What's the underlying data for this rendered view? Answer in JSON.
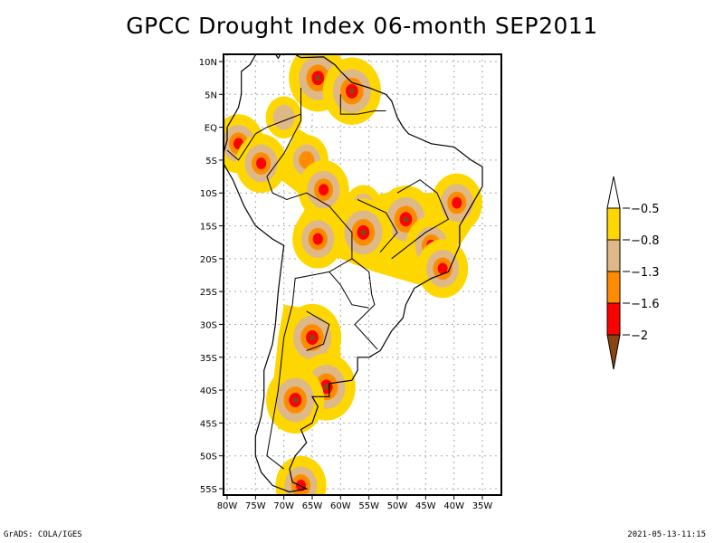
{
  "title": "GPCC Drought Index 06-month SEP2011",
  "footer": {
    "left": "GrADS: COLA/IGES",
    "right": "2021-05-13-11:15"
  },
  "map": {
    "region": "South America",
    "projection": "lat-lon",
    "lon_range": [
      -81,
      -32
    ],
    "lat_range": [
      -56,
      11
    ],
    "grid": "dotted",
    "lat_ticks": [
      {
        "value": 10,
        "label": "10N"
      },
      {
        "value": 5,
        "label": "5N"
      },
      {
        "value": 0,
        "label": "EQ"
      },
      {
        "value": -5,
        "label": "5S"
      },
      {
        "value": -10,
        "label": "10S"
      },
      {
        "value": -15,
        "label": "15S"
      },
      {
        "value": -20,
        "label": "20S"
      },
      {
        "value": -25,
        "label": "25S"
      },
      {
        "value": -30,
        "label": "30S"
      },
      {
        "value": -35,
        "label": "35S"
      },
      {
        "value": -40,
        "label": "40S"
      },
      {
        "value": -45,
        "label": "45S"
      },
      {
        "value": -50,
        "label": "50S"
      },
      {
        "value": -55,
        "label": "55S"
      }
    ],
    "lon_ticks": [
      {
        "value": -80,
        "label": "80W"
      },
      {
        "value": -75,
        "label": "75W"
      },
      {
        "value": -70,
        "label": "70W"
      },
      {
        "value": -65,
        "label": "65W"
      },
      {
        "value": -60,
        "label": "60W"
      },
      {
        "value": -55,
        "label": "55W"
      },
      {
        "value": -50,
        "label": "50W"
      },
      {
        "value": -45,
        "label": "45W"
      },
      {
        "value": -40,
        "label": "40W"
      },
      {
        "value": -35,
        "label": "35W"
      }
    ]
  },
  "colorbar": {
    "levels": [
      {
        "label": "-0.5",
        "color": "#ffd700"
      },
      {
        "label": "-0.8",
        "color": "#deb887"
      },
      {
        "label": "-1.3",
        "color": "#ff8c00"
      },
      {
        "label": "-1.6",
        "color": "#ff0000"
      },
      {
        "label": "-2",
        "color": "#8b4513"
      }
    ],
    "top_arrow_color": "#ffffff",
    "bottom_arrow_color": "#8b4513"
  },
  "drought_areas": [
    {
      "name": "venezuela-coast",
      "lon": -64,
      "lat": 7.5,
      "peak_level": 4
    },
    {
      "name": "guyana",
      "lon": -58,
      "lat": 5.5,
      "peak_level": 4
    },
    {
      "name": "colombia-amazon",
      "lon": -70,
      "lat": 1.5,
      "peak_level": 1
    },
    {
      "name": "ecuador-peru",
      "lon": -78,
      "lat": -2.5,
      "peak_level": 3
    },
    {
      "name": "peru-north",
      "lon": -74,
      "lat": -5.5,
      "peak_level": 3
    },
    {
      "name": "amazon-west",
      "lon": -66,
      "lat": -5,
      "peak_level": 2
    },
    {
      "name": "rondonia",
      "lon": -63,
      "lat": -9.5,
      "peak_level": 3
    },
    {
      "name": "central-brazil",
      "lon": -56,
      "lat": -12,
      "peak_level": 1
    },
    {
      "name": "goias",
      "lon": -48.5,
      "lat": -14,
      "peak_level": 4
    },
    {
      "name": "mato-grosso",
      "lon": -56,
      "lat": -16,
      "peak_level": 4
    },
    {
      "name": "bolivia",
      "lon": -64,
      "lat": -17,
      "peak_level": 3
    },
    {
      "name": "bahia",
      "lon": -39.5,
      "lat": -11.5,
      "peak_level": 3
    },
    {
      "name": "minas-gerais",
      "lon": -44,
      "lat": -18,
      "peak_level": 3
    },
    {
      "name": "rio",
      "lon": -42,
      "lat": -21.5,
      "peak_level": 3
    },
    {
      "name": "cordoba",
      "lon": -65,
      "lat": -32,
      "peak_level": 4
    },
    {
      "name": "buenos-aires-south",
      "lon": -62.5,
      "lat": -39.5,
      "peak_level": 4
    },
    {
      "name": "rio-negro",
      "lon": -68,
      "lat": -41.5,
      "peak_level": 4
    },
    {
      "name": "tierra-del-fuego",
      "lon": -67,
      "lat": -54.5,
      "peak_level": 3
    }
  ]
}
